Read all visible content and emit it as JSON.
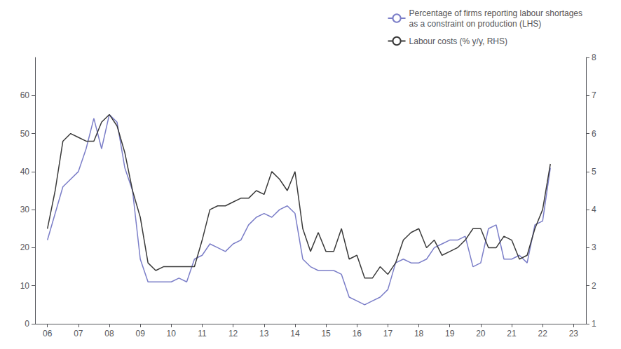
{
  "chart_data": {
    "type": "line",
    "xlim": [
      2005.6,
      2023.4
    ],
    "xticks": [
      {
        "value": 2006,
        "label": "06"
      },
      {
        "value": 2007,
        "label": "07"
      },
      {
        "value": 2008,
        "label": "08"
      },
      {
        "value": 2009,
        "label": "09"
      },
      {
        "value": 2010,
        "label": "10"
      },
      {
        "value": 2011,
        "label": "11"
      },
      {
        "value": 2012,
        "label": "12"
      },
      {
        "value": 2013,
        "label": "13"
      },
      {
        "value": 2014,
        "label": "14"
      },
      {
        "value": 2015,
        "label": "15"
      },
      {
        "value": 2016,
        "label": "16"
      },
      {
        "value": 2017,
        "label": "17"
      },
      {
        "value": 2018,
        "label": "18"
      },
      {
        "value": 2019,
        "label": "19"
      },
      {
        "value": 2020,
        "label": "20"
      },
      {
        "value": 2021,
        "label": "21"
      },
      {
        "value": 2022,
        "label": "22"
      },
      {
        "value": 2023,
        "label": "23"
      }
    ],
    "ylim": [
      0,
      70
    ],
    "yticks": [
      0,
      10,
      20,
      30,
      40,
      50,
      60
    ],
    "y2lim": [
      1,
      8
    ],
    "y2ticks": [
      1,
      2,
      3,
      4,
      5,
      6,
      7,
      8
    ],
    "grid": false,
    "legend": "upper right",
    "series": [
      {
        "name": "Percentage of firms reporting labour shortages\nas a constraint on production (LHS)",
        "color": "#7b7ec8",
        "x": [
          2006.0,
          2006.5,
          2007.0,
          2007.25,
          2007.5,
          2007.75,
          2008.0,
          2008.25,
          2008.5,
          2008.75,
          2009.0,
          2009.25,
          2009.5,
          2009.75,
          2010.0,
          2010.25,
          2010.5,
          2010.75,
          2011.0,
          2011.25,
          2011.5,
          2011.75,
          2012.0,
          2012.25,
          2012.5,
          2012.75,
          2013.0,
          2013.25,
          2013.5,
          2013.75,
          2014.0,
          2014.25,
          2014.5,
          2014.75,
          2015.0,
          2015.25,
          2015.5,
          2015.75,
          2016.0,
          2016.25,
          2016.5,
          2016.75,
          2017.0,
          2017.25,
          2017.5,
          2017.75,
          2018.0,
          2018.25,
          2018.5,
          2018.75,
          2019.0,
          2019.25,
          2019.5,
          2019.75,
          2020.0,
          2020.25,
          2020.5,
          2020.75,
          2021.0,
          2021.25,
          2021.5,
          2021.75,
          2022.0,
          2022.25
        ],
        "values": [
          22,
          36,
          40,
          46,
          54,
          46,
          55,
          53,
          41,
          35,
          17,
          11,
          11,
          11,
          11,
          12,
          11,
          17,
          18,
          21,
          20,
          19,
          21,
          22,
          26,
          28,
          29,
          28,
          30,
          31,
          29,
          17,
          15,
          14,
          14,
          14,
          13,
          7,
          6,
          5,
          6,
          7,
          9,
          16,
          17,
          16,
          16,
          17,
          20,
          21,
          22,
          22,
          23,
          15,
          16,
          25,
          26,
          17,
          17,
          18,
          16,
          26,
          27,
          41
        ]
      },
      {
        "name": "Labour costs (% y/y, RHS)",
        "color": "#3a3a3a",
        "axis": "y2",
        "x": [
          2006.0,
          2006.25,
          2006.5,
          2006.75,
          2007.0,
          2007.25,
          2007.5,
          2007.75,
          2008.0,
          2008.25,
          2008.5,
          2008.75,
          2009.0,
          2009.25,
          2009.5,
          2009.75,
          2010.0,
          2010.25,
          2010.5,
          2010.75,
          2011.0,
          2011.25,
          2011.5,
          2011.75,
          2012.0,
          2012.25,
          2012.5,
          2012.75,
          2013.0,
          2013.25,
          2013.5,
          2013.75,
          2014.0,
          2014.25,
          2014.5,
          2014.75,
          2015.0,
          2015.25,
          2015.5,
          2015.75,
          2016.0,
          2016.25,
          2016.5,
          2016.75,
          2017.0,
          2017.25,
          2017.5,
          2017.75,
          2018.0,
          2018.25,
          2018.5,
          2018.75,
          2019.0,
          2019.25,
          2019.5,
          2019.75,
          2020.0,
          2020.25,
          2020.5,
          2020.75,
          2021.0,
          2021.25,
          2021.5,
          2021.75,
          2022.0,
          2022.25
        ],
        "values": [
          3.5,
          4.5,
          5.8,
          6.0,
          5.9,
          5.8,
          5.8,
          6.3,
          6.5,
          6.2,
          5.5,
          4.5,
          3.8,
          2.6,
          2.4,
          2.5,
          2.5,
          2.5,
          2.5,
          2.5,
          3.2,
          4.0,
          4.1,
          4.1,
          4.2,
          4.3,
          4.3,
          4.5,
          4.4,
          5.0,
          4.8,
          4.5,
          5.0,
          3.5,
          2.9,
          3.4,
          2.9,
          2.9,
          3.5,
          2.7,
          2.8,
          2.2,
          2.2,
          2.5,
          2.3,
          2.6,
          3.2,
          3.4,
          3.5,
          3.0,
          3.2,
          2.8,
          2.9,
          3.0,
          3.2,
          3.5,
          3.5,
          3.0,
          3.0,
          3.3,
          3.2,
          2.7,
          2.8,
          3.5,
          4.0,
          5.2
        ]
      }
    ]
  }
}
